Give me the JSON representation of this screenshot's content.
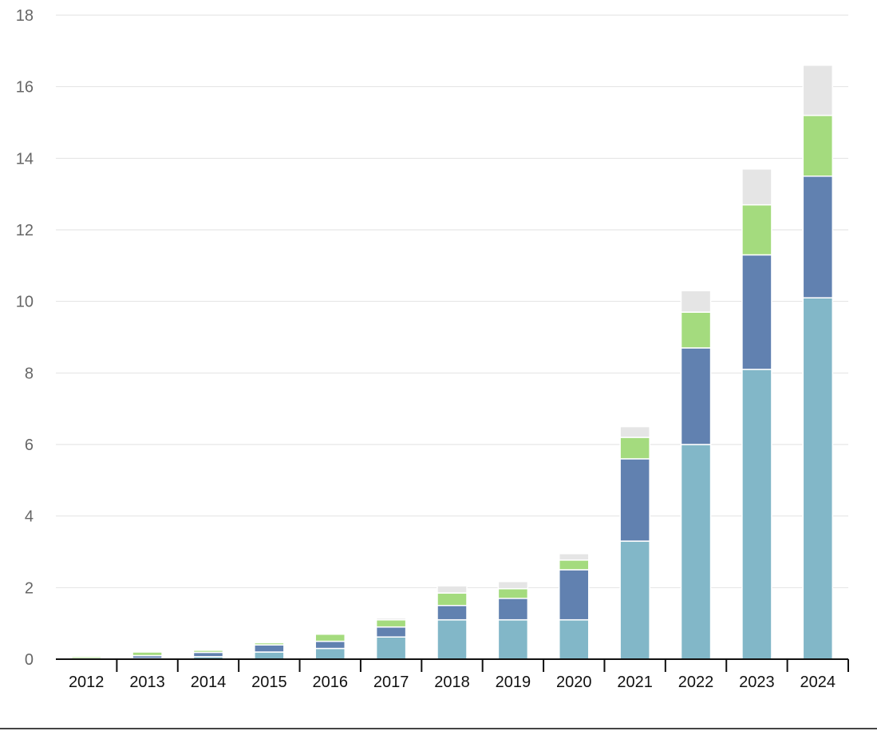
{
  "chart_data": {
    "type": "bar",
    "stacked": true,
    "title": "",
    "xlabel": "",
    "ylabel": "",
    "ylim": [
      0,
      18
    ],
    "yticks": [
      0,
      2,
      4,
      6,
      8,
      10,
      12,
      14,
      16,
      18
    ],
    "grid": true,
    "legend": "none",
    "categories": [
      "2012",
      "2013",
      "2014",
      "2015",
      "2016",
      "2017",
      "2018",
      "2019",
      "2020",
      "2021",
      "2022",
      "2023",
      "2024"
    ],
    "series": [
      {
        "color": "#82b7c8",
        "values": [
          0.0,
          0.02,
          0.07,
          0.2,
          0.3,
          0.62,
          1.1,
          1.1,
          1.1,
          3.3,
          6.0,
          8.1,
          10.1
        ]
      },
      {
        "color": "#6181b0",
        "values": [
          0.02,
          0.08,
          0.12,
          0.2,
          0.2,
          0.28,
          0.4,
          0.6,
          1.4,
          2.3,
          2.7,
          3.2,
          3.4
        ]
      },
      {
        "color": "#a4db7e",
        "values": [
          0.05,
          0.1,
          0.06,
          0.06,
          0.2,
          0.2,
          0.35,
          0.27,
          0.27,
          0.6,
          1.0,
          1.4,
          1.7
        ]
      },
      {
        "color": "#e5e5e5",
        "values": [
          0.0,
          0.0,
          0.02,
          0.02,
          0.01,
          0.05,
          0.2,
          0.2,
          0.18,
          0.3,
          0.6,
          1.0,
          1.4
        ]
      }
    ]
  }
}
